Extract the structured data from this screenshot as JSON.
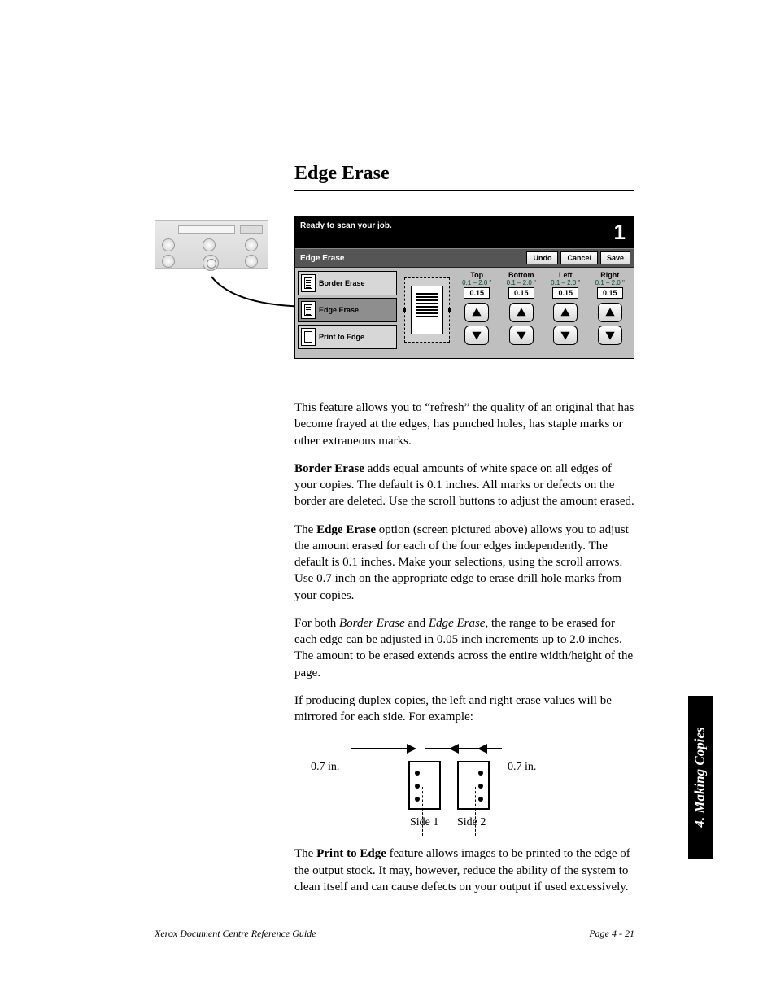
{
  "title": "Edge Erase",
  "sidetab": "4. Making Copies",
  "footer": {
    "left": "Xerox Document Centre Reference Guide",
    "right": "Page 4 - 21"
  },
  "ui": {
    "status": "Ready to scan your job.",
    "jobnum": "1",
    "titlebar": "Edge Erase",
    "buttons": {
      "undo": "Undo",
      "cancel": "Cancel",
      "save": "Save"
    },
    "options": {
      "border": "Border Erase",
      "edge": "Edge Erase",
      "print": "Print to Edge"
    },
    "steppers": [
      {
        "label": "Top",
        "range": "0.1 – 2.0 \"",
        "value": "0.15"
      },
      {
        "label": "Bottom",
        "range": "0.1 – 2.0 \"",
        "value": "0.15"
      },
      {
        "label": "Left",
        "range": "0.1 – 2.0 \"",
        "value": "0.15"
      },
      {
        "label": "Right",
        "range": "0.1 – 2.0 \"",
        "value": "0.15"
      }
    ]
  },
  "paras": {
    "p1": "This feature allows you to “refresh” the quality of an original that has become frayed at the edges, has punched holes, has staple marks or other extraneous marks.",
    "p2a": "Border Erase",
    "p2b": " adds equal amounts of white space on all edges of your copies. The default is 0.1 inches. All marks or defects on the border are deleted. Use the scroll buttons to adjust the amount erased.",
    "p3a": "The ",
    "p3b": "Edge Erase",
    "p3c": " option (screen pictured above) allows you to adjust the amount erased for each of the four edges independently. The default is 0.1 inches. Make your selections, using the scroll arrows. Use 0.7 inch on the appropriate edge to erase drill hole marks from your copies.",
    "p4a": "For both ",
    "p4b": "Border Erase",
    "p4c": " and ",
    "p4d": "Edge Erase",
    "p4e": ", the range to be erased for each edge can be adjusted in 0.05 inch increments up to 2.0 inches. The amount to be erased extends across the entire width/height of the page.",
    "p5": "If producing duplex copies, the left and right erase values will be mirrored for each side. For example:",
    "p6a": "The ",
    "p6b": "Print to Edge",
    "p6c": " feature allows images to be printed to the edge of the output stock. It may, however, reduce the ability of the system to clean itself and can cause defects on your output if used excessively."
  },
  "duplex": {
    "left": "0.7 in.",
    "right": "0.7 in.",
    "s1": "Side 1",
    "s2": "Side 2"
  }
}
